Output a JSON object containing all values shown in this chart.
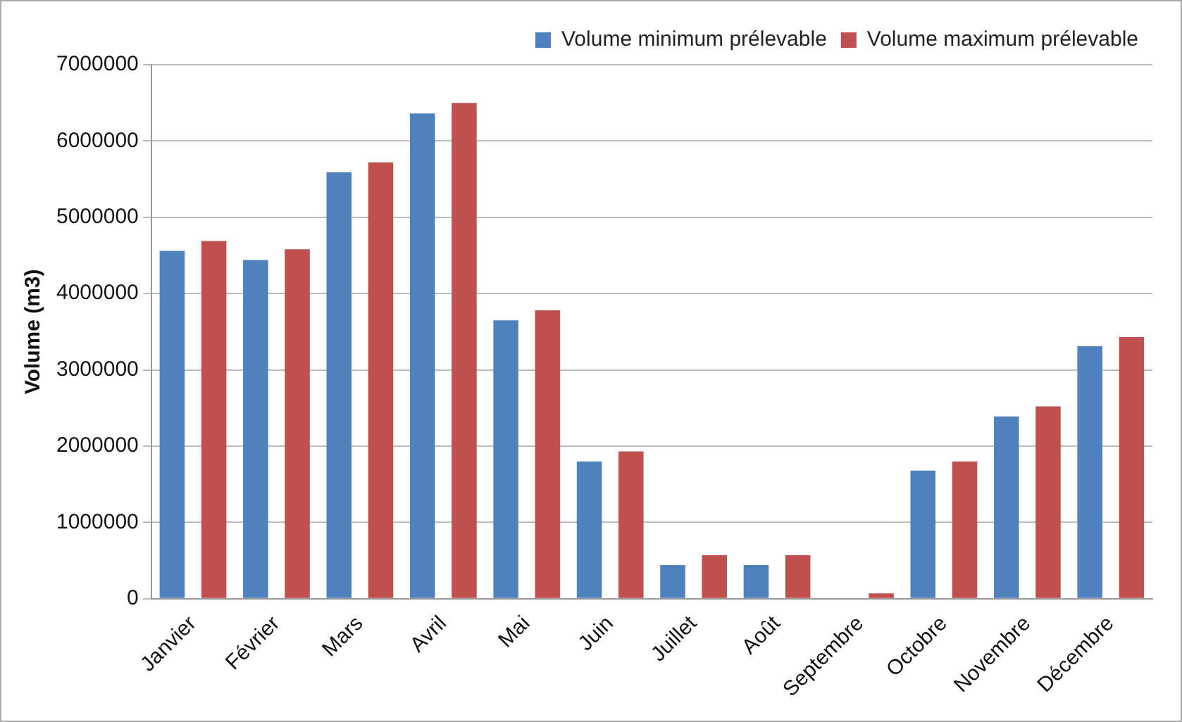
{
  "chart_data": {
    "type": "bar",
    "ylabel": "Volume (m3)",
    "categories": [
      "Janvier",
      "Février",
      "Mars",
      "Avril",
      "Mai",
      "Juin",
      "Juillet",
      "Août",
      "Septembre",
      "Octobre",
      "Novembre",
      "Décembre"
    ],
    "series": [
      {
        "name": "Volume minimum prélevable",
        "color": "#4f81bd",
        "values": [
          4560000,
          4440000,
          5590000,
          6360000,
          3650000,
          1800000,
          440000,
          440000,
          0,
          1680000,
          2390000,
          3310000
        ]
      },
      {
        "name": "Volume maximum prélevable",
        "color": "#c0504d",
        "values": [
          4690000,
          4580000,
          5720000,
          6500000,
          3780000,
          1930000,
          570000,
          570000,
          70000,
          1800000,
          2520000,
          3430000
        ]
      }
    ],
    "ylim": [
      0,
      7000000
    ],
    "yticks": [
      0,
      1000000,
      2000000,
      3000000,
      4000000,
      5000000,
      6000000,
      7000000
    ],
    "grid": "y",
    "legend": "top right"
  }
}
